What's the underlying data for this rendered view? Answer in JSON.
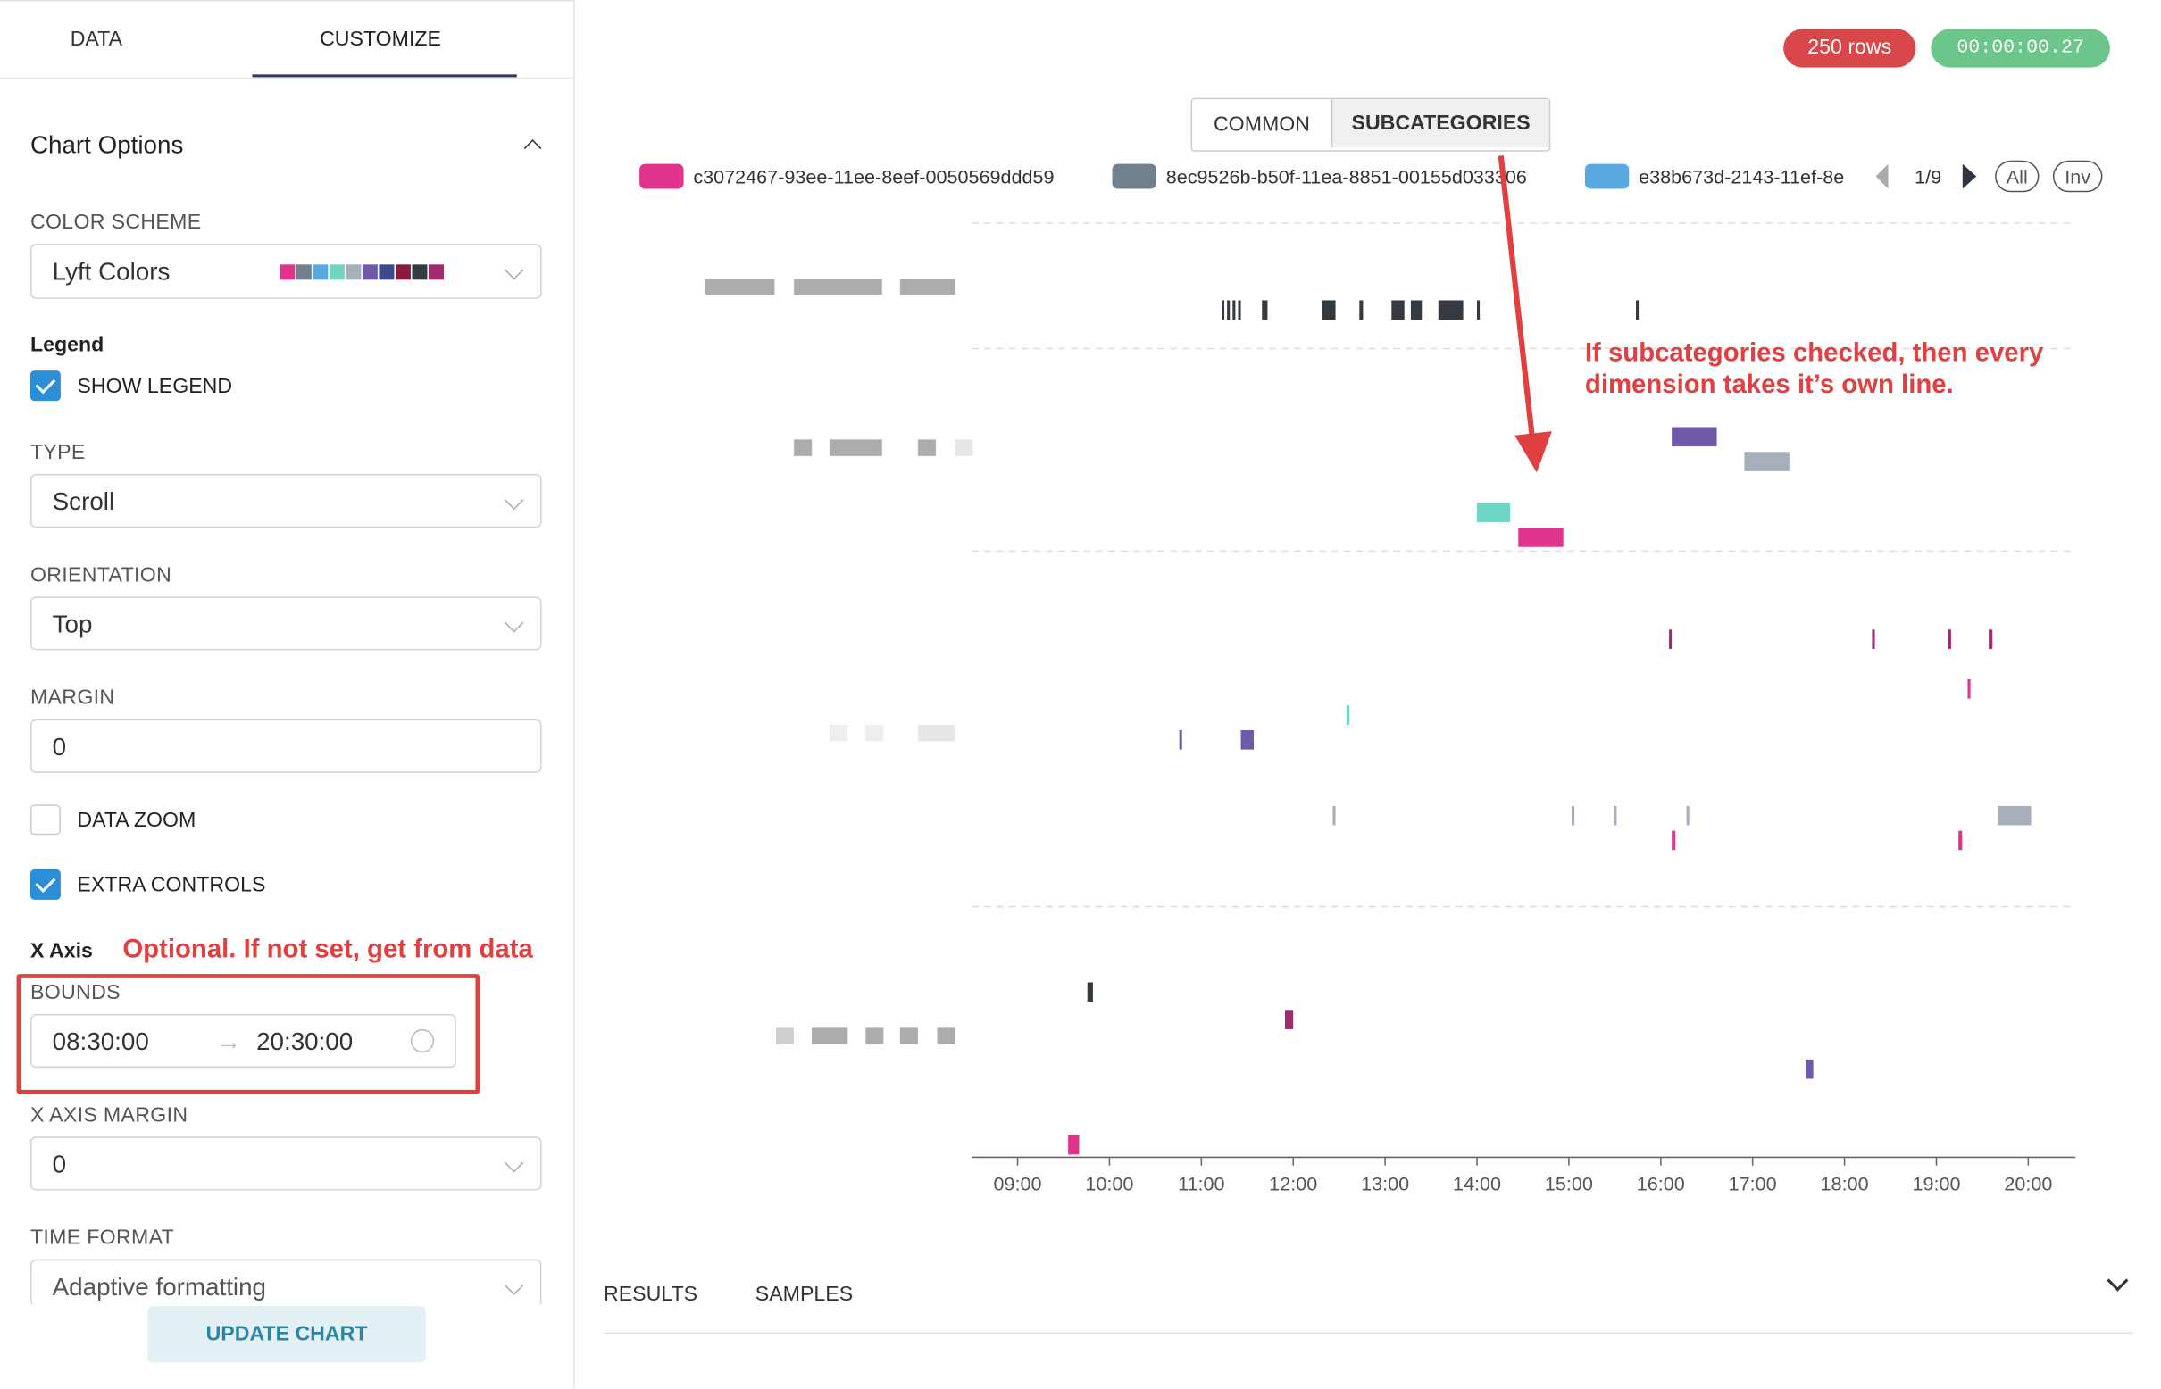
{
  "sidebar": {
    "tabs": [
      "DATA",
      "CUSTOMIZE"
    ],
    "section_title": "Chart Options",
    "color_scheme": {
      "label": "COLOR SCHEME",
      "value": "Lyft Colors"
    },
    "legend": {
      "title": "Legend",
      "show_legend": "SHOW LEGEND"
    },
    "type": {
      "label": "TYPE",
      "value": "Scroll"
    },
    "orientation": {
      "label": "ORIENTATION",
      "value": "Top"
    },
    "margin": {
      "label": "MARGIN",
      "value": "0"
    },
    "data_zoom": "DATA ZOOM",
    "extra_controls": "EXTRA CONTROLS",
    "x_axis": {
      "title": "X Axis",
      "note": "Optional. If not set, get from data",
      "bounds_label": "BOUNDS",
      "bound_start": "08:30:00",
      "bound_end": "20:30:00"
    },
    "x_axis_margin": {
      "label": "X AXIS MARGIN",
      "value": "0"
    },
    "time_format": {
      "label": "TIME FORMAT",
      "value": "Adaptive formatting"
    },
    "update_button": "UPDATE CHART"
  },
  "header": {
    "rows": "250 rows",
    "time": "00:00:00.27"
  },
  "toggle": [
    "COMMON",
    "SUBCATEGORIES"
  ],
  "pagination": {
    "page": "1/9",
    "all": "All",
    "inv": "Inv"
  },
  "bottom_tabs": [
    "RESULTS",
    "SAMPLES"
  ],
  "chart_data": {
    "type": "timeline",
    "annotation": "If subcategories checked, then every dimension takes it’s own line.",
    "legend": [
      {
        "name": "c3072467-93ee-11ee-8eef-0050569ddd59",
        "color": "#e0338c"
      },
      {
        "name": "8ec9526b-b50f-11ea-8851-00155d033306",
        "color": "#717f8e"
      },
      {
        "name": "e38b673d-2143-11ef-8e",
        "color": "#5aa9e0"
      }
    ],
    "categories": [
      null,
      null,
      null,
      null,
      null,
      null,
      null,
      null,
      null,
      null,
      null,
      null,
      null,
      null,
      null
    ],
    "xlim": [
      8.5,
      20.5
    ],
    "xticks": [
      {
        "value": 9,
        "label": "09:00"
      },
      {
        "value": 10,
        "label": "10:00"
      },
      {
        "value": 11,
        "label": "11:00"
      },
      {
        "value": 12,
        "label": "12:00"
      },
      {
        "value": 13,
        "label": "13:00"
      },
      {
        "value": 14,
        "label": "14:00"
      },
      {
        "value": 15,
        "label": "15:00"
      },
      {
        "value": 16,
        "label": "16:00"
      },
      {
        "value": 17,
        "label": "17:00"
      },
      {
        "value": 18,
        "label": "18:00"
      },
      {
        "value": 19,
        "label": "19:00"
      },
      {
        "value": 20,
        "label": "20:00"
      }
    ],
    "events": [
      {
        "lane": 0,
        "start": 11.22,
        "end": 11.25,
        "color": "#353a40"
      },
      {
        "lane": 0,
        "start": 11.28,
        "end": 11.31,
        "color": "#353a40"
      },
      {
        "lane": 0,
        "start": 11.34,
        "end": 11.37,
        "color": "#353a40"
      },
      {
        "lane": 0,
        "start": 11.4,
        "end": 11.43,
        "color": "#353a40"
      },
      {
        "lane": 0,
        "start": 11.66,
        "end": 11.72,
        "color": "#353a40"
      },
      {
        "lane": 0,
        "start": 12.31,
        "end": 12.46,
        "color": "#353a40"
      },
      {
        "lane": 0,
        "start": 12.72,
        "end": 12.76,
        "color": "#353a40"
      },
      {
        "lane": 0,
        "start": 13.07,
        "end": 13.21,
        "color": "#353a40"
      },
      {
        "lane": 0,
        "start": 13.28,
        "end": 13.4,
        "color": "#353a40"
      },
      {
        "lane": 0,
        "start": 13.58,
        "end": 13.85,
        "color": "#353a40"
      },
      {
        "lane": 0,
        "start": 14.0,
        "end": 14.03,
        "color": "#353a40"
      },
      {
        "lane": 0,
        "start": 15.73,
        "end": 15.76,
        "color": "#353a40"
      },
      {
        "lane": 1,
        "start": 16.12,
        "end": 16.61,
        "color": "#6e5aa8"
      },
      {
        "lane": 2,
        "start": 16.91,
        "end": 17.4,
        "color": "#a7b0ba"
      },
      {
        "lane": 3,
        "start": 14.0,
        "end": 14.36,
        "color": "#6fd5c4"
      },
      {
        "lane": 4,
        "start": 14.45,
        "end": 14.94,
        "color": "#e0338c"
      },
      {
        "lane": 5,
        "start": 16.09,
        "end": 16.12,
        "color": "#a22a6f"
      },
      {
        "lane": 5,
        "start": 18.3,
        "end": 18.33,
        "color": "#a22a6f"
      },
      {
        "lane": 5,
        "start": 19.13,
        "end": 19.16,
        "color": "#a22a6f"
      },
      {
        "lane": 5,
        "start": 19.57,
        "end": 19.61,
        "color": "#a22a6f"
      },
      {
        "lane": 6,
        "start": 19.34,
        "end": 19.37,
        "color": "#e0338c"
      },
      {
        "lane": 7,
        "start": 12.58,
        "end": 12.61,
        "color": "#6fd5c4"
      },
      {
        "lane": 8,
        "start": 10.76,
        "end": 10.79,
        "color": "#6e5aa8"
      },
      {
        "lane": 8,
        "start": 11.43,
        "end": 11.57,
        "color": "#6e5aa8"
      },
      {
        "lane": 9,
        "start": 12.43,
        "end": 12.46,
        "color": "#a7b0ba"
      },
      {
        "lane": 9,
        "start": 15.03,
        "end": 15.06,
        "color": "#a7b0ba"
      },
      {
        "lane": 9,
        "start": 15.49,
        "end": 15.52,
        "color": "#a7b0ba"
      },
      {
        "lane": 9,
        "start": 16.28,
        "end": 16.31,
        "color": "#a7b0ba"
      },
      {
        "lane": 9,
        "start": 19.67,
        "end": 20.03,
        "color": "#a7b0ba"
      },
      {
        "lane": 10,
        "start": 16.12,
        "end": 16.16,
        "color": "#e0338c"
      },
      {
        "lane": 10,
        "start": 19.24,
        "end": 19.28,
        "color": "#e0338c"
      },
      {
        "lane": 11,
        "start": 9.76,
        "end": 9.82,
        "color": "#353a40"
      },
      {
        "lane": 12,
        "start": 11.91,
        "end": 12.0,
        "color": "#a22a6f"
      },
      {
        "lane": 13,
        "start": 17.58,
        "end": 17.66,
        "color": "#6e5aa8"
      },
      {
        "lane": 14,
        "start": 9.55,
        "end": 9.67,
        "color": "#e0338c"
      }
    ]
  }
}
